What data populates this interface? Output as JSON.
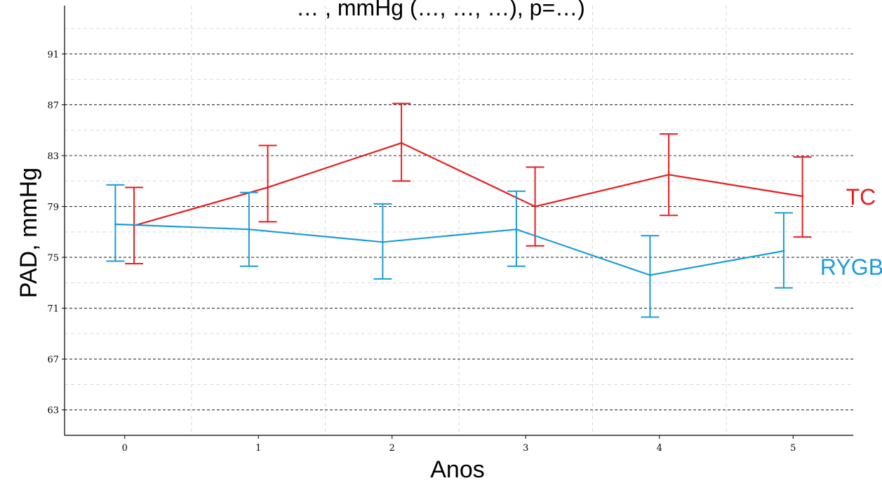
{
  "chart_data": {
    "type": "line",
    "title": "… , mmHg (…, …, …), p=…)",
    "xlabel": "Anos",
    "ylabel": "PAD, mmHg",
    "x": [
      0,
      1,
      2,
      3,
      4,
      5
    ],
    "x_tick_labels": [
      "0",
      "1",
      "2",
      "3",
      "4",
      "5"
    ],
    "y_ticks": [
      63,
      67,
      71,
      75,
      79,
      83,
      87,
      91
    ],
    "y_tick_labels": [
      "63",
      "67",
      "71",
      "75",
      "79",
      "83",
      "87",
      "91"
    ],
    "xlim": [
      -0.45,
      5.45
    ],
    "ylim": [
      61.0,
      94.8
    ],
    "grid": true,
    "series": [
      {
        "name": "TC",
        "color": "#e81c1c",
        "x": [
          0.07,
          1.07,
          2.07,
          3.07,
          4.07,
          5.07
        ],
        "y": [
          77.5,
          80.5,
          84.0,
          79.0,
          81.5,
          79.8
        ],
        "err_low": [
          74.5,
          77.8,
          81.0,
          75.9,
          78.3,
          76.6
        ],
        "err_high": [
          80.5,
          83.8,
          87.1,
          82.1,
          84.7,
          82.9
        ]
      },
      {
        "name": "RYGB",
        "color": "#1a9cd8",
        "x": [
          -0.07,
          0.93,
          1.93,
          2.93,
          3.93,
          4.93
        ],
        "y": [
          77.6,
          77.2,
          76.2,
          77.2,
          73.6,
          75.5
        ],
        "err_low": [
          74.7,
          74.3,
          73.3,
          74.3,
          70.3,
          72.6
        ],
        "err_high": [
          80.7,
          80.1,
          79.2,
          80.2,
          76.7,
          78.5
        ]
      }
    ]
  }
}
